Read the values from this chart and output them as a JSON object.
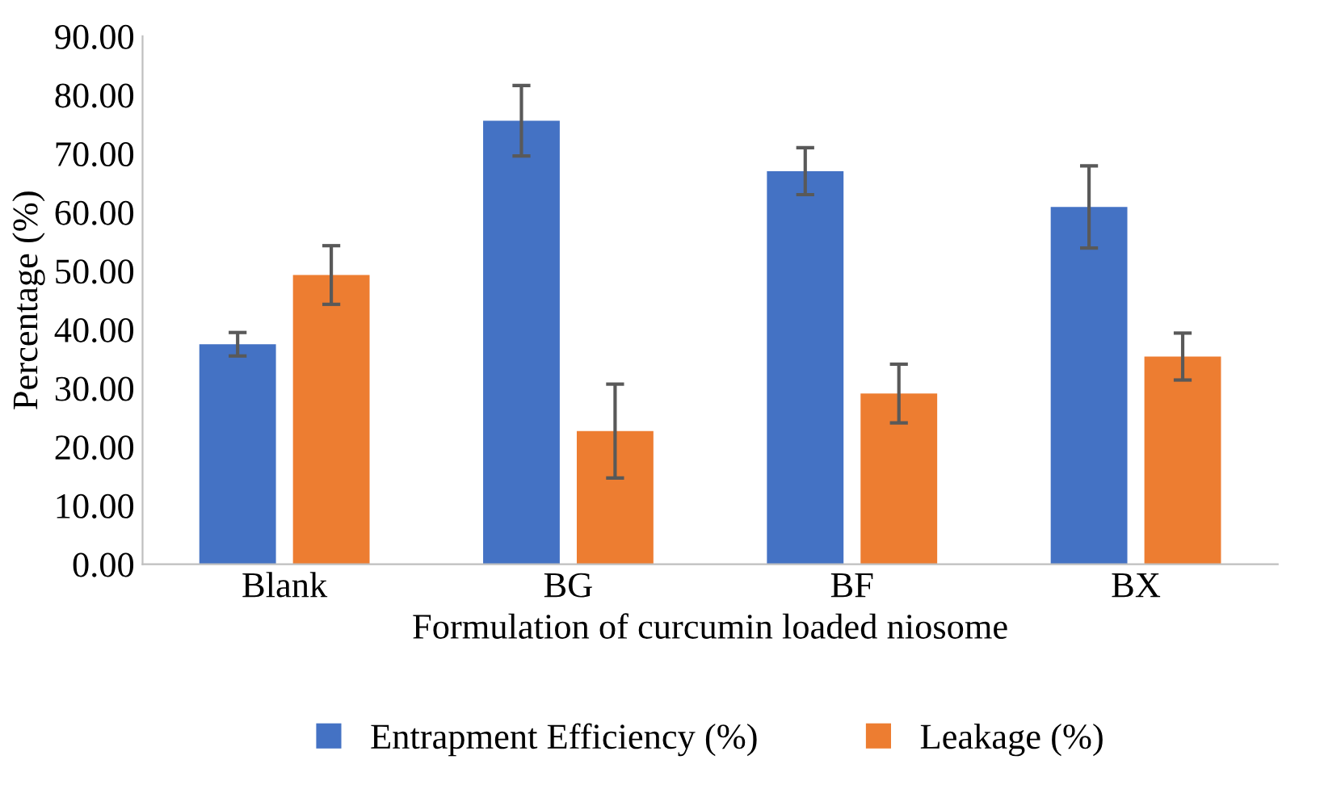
{
  "chart_data": {
    "type": "bar",
    "xlabel": "Formulation of curcumin loaded niosome",
    "ylabel": "Percentage (%)",
    "categories": [
      "Blank",
      "BG",
      "BF",
      "BX"
    ],
    "series": [
      {
        "name": "Entrapment Efficiency (%)",
        "color": "#4472c4",
        "values": [
          37.5,
          75.6,
          67.0,
          60.9
        ],
        "errors": [
          2,
          6,
          4,
          7
        ]
      },
      {
        "name": "Leakage (%)",
        "color": "#ed7d31",
        "values": [
          49.3,
          22.7,
          29.1,
          35.4
        ],
        "errors": [
          5,
          8,
          5,
          4
        ]
      }
    ],
    "ylim": [
      0,
      90
    ],
    "yticks": [
      {
        "value": 0,
        "label": "0.00"
      },
      {
        "value": 10,
        "label": "10.00"
      },
      {
        "value": 20,
        "label": "20.00"
      },
      {
        "value": 30,
        "label": "30.00"
      },
      {
        "value": 40,
        "label": "40.00"
      },
      {
        "value": 50,
        "label": "50.00"
      },
      {
        "value": 60,
        "label": "60.00"
      },
      {
        "value": 70,
        "label": "70.00"
      },
      {
        "value": 80,
        "label": "80.00"
      },
      {
        "value": 90,
        "label": "90.00"
      }
    ],
    "grid": false,
    "legend": "bottom"
  }
}
